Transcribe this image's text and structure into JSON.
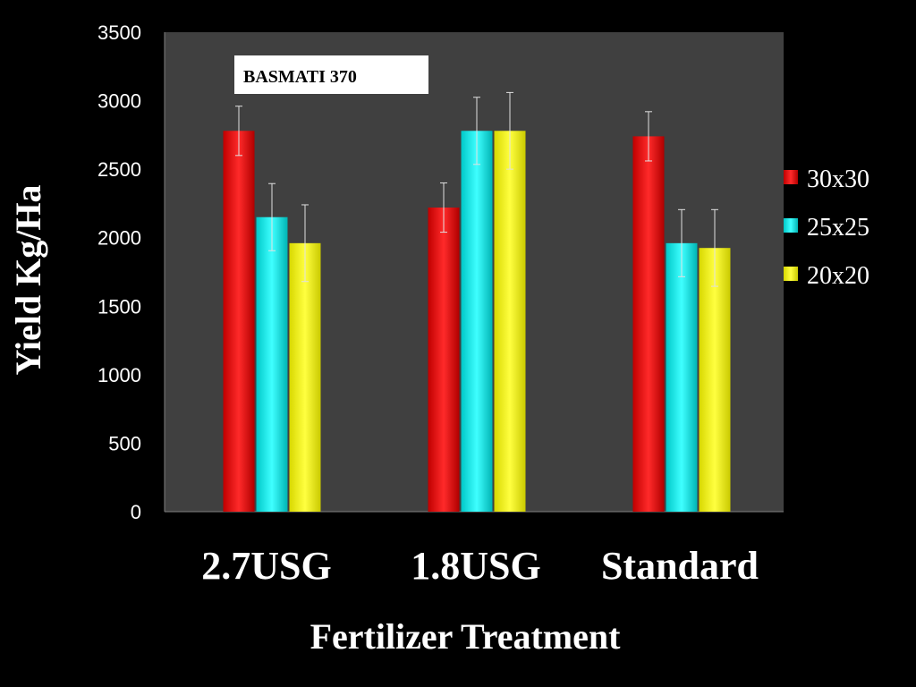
{
  "chart_data": {
    "type": "bar",
    "annotation": "BASMATI 370",
    "xlabel": "Fertilizer Treatment",
    "ylabel": "Yield Kg/Ha",
    "ylim": [
      0,
      3500
    ],
    "yticks": [
      0,
      500,
      1000,
      1500,
      2000,
      2500,
      3000,
      3500
    ],
    "categories": [
      "2.7USG",
      "1.8USG",
      "Standard"
    ],
    "series": [
      {
        "name": "30x30",
        "color": "#ff0000",
        "values": [
          2780,
          2220,
          2740
        ],
        "errors": [
          180,
          180,
          180
        ]
      },
      {
        "name": "25x25",
        "color": "#00ffff",
        "values": [
          2150,
          2780,
          1960
        ],
        "errors": [
          245,
          245,
          245
        ]
      },
      {
        "name": "20x20",
        "color": "#ffff00",
        "values": [
          1960,
          2780,
          1925
        ],
        "errors": [
          280,
          280,
          280
        ]
      }
    ],
    "legend_position": "right",
    "grid": false,
    "colors": {
      "background": "#000000",
      "plot_area": "#404040"
    }
  }
}
